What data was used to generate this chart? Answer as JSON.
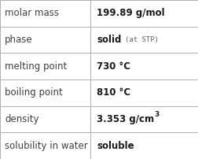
{
  "rows": [
    {
      "label": "molar mass",
      "value": "199.89 g/mol",
      "superscript": null,
      "note": null
    },
    {
      "label": "phase",
      "value": "solid",
      "superscript": null,
      "note": "(at STP)"
    },
    {
      "label": "melting point",
      "value": "730 °C",
      "superscript": null,
      "note": null
    },
    {
      "label": "boiling point",
      "value": "810 °C",
      "superscript": null,
      "note": null
    },
    {
      "label": "density",
      "value": "3.353 g/cm",
      "superscript": "3",
      "note": null
    },
    {
      "label": "solubility in water",
      "value": "soluble",
      "superscript": null,
      "note": null
    }
  ],
  "col_split": 0.455,
  "border_color": "#b0b0b0",
  "label_color": "#404040",
  "value_color": "#1a1a1a",
  "note_color": "#606060",
  "bg_color": "#ffffff",
  "label_fontsize": 8.5,
  "value_fontsize": 8.5,
  "note_fontsize": 6.5,
  "sup_fontsize": 6.5,
  "figwidth": 2.52,
  "figheight": 2.02,
  "dpi": 100
}
